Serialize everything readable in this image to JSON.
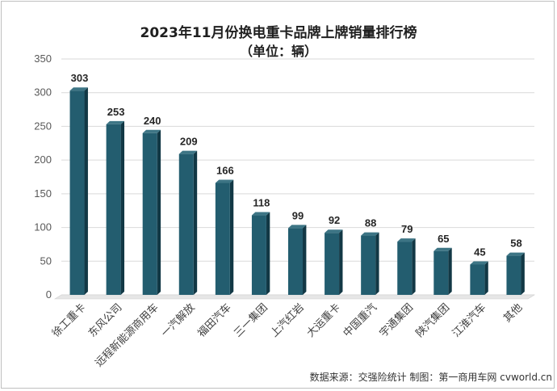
{
  "chart_data": {
    "type": "bar",
    "title": "2023年11月份换电重卡品牌上牌销量排行榜",
    "subtitle": "（单位：辆）",
    "categories": [
      "徐工重卡",
      "东风公司",
      "远程新能源商用车",
      "一汽解放",
      "福田汽车",
      "三一集团",
      "上汽红岩",
      "大运重卡",
      "中国重汽",
      "宇通集团",
      "陕汽集团",
      "江淮汽车",
      "其他"
    ],
    "values": [
      303,
      253,
      240,
      209,
      166,
      118,
      99,
      92,
      88,
      79,
      65,
      45,
      58
    ],
    "ylim": [
      0,
      350
    ],
    "yticks": [
      0,
      50,
      100,
      150,
      200,
      250,
      300,
      350
    ],
    "xlabel": "",
    "ylabel": "",
    "grid": true,
    "bar_color": "#1f5869"
  },
  "footer": "数据来源：交强险统计  制图：第一商用车网 cvworld.cn"
}
